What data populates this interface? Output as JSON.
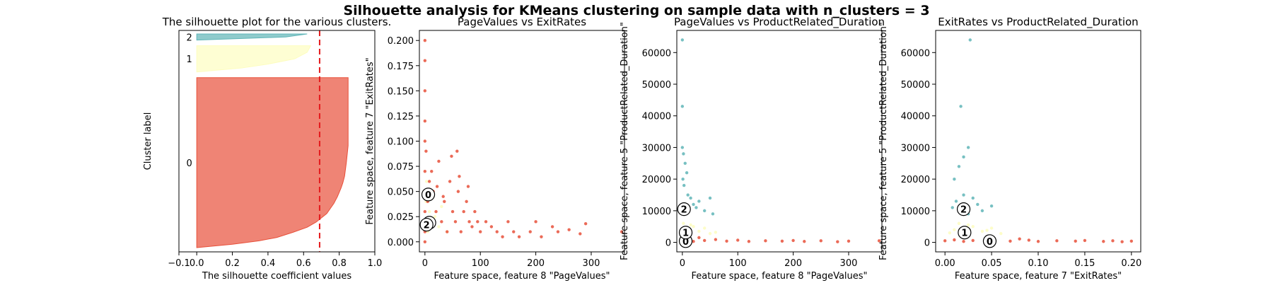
{
  "suptitle": "Silhouette analysis for KMeans clustering on sample data with n_clusters = 3",
  "colors": {
    "cluster_0": "#e8503a",
    "cluster_1": "#fdfdc0",
    "cluster_2": "#5fb5b7",
    "mean_line": "#e41a1c"
  },
  "chart_data": [
    {
      "type": "silhouette",
      "title": "The silhouette plot for the various clusters.",
      "xlabel": "The silhouette coefficient values",
      "ylabel": "Cluster label",
      "xlim": [
        -0.1,
        1.0
      ],
      "xticks": [
        "−0.1",
        "0.0",
        "0.2",
        "0.4",
        "0.6",
        "0.8",
        "1.0"
      ],
      "average_silhouette": 0.69,
      "clusters": [
        {
          "label": "0",
          "share": 0.84,
          "max_value": 0.85,
          "profile": [
            [
              0.0,
              0.85
            ],
            [
              0.1,
              0.85
            ],
            [
              0.2,
              0.85
            ],
            [
              0.3,
              0.85
            ],
            [
              0.4,
              0.85
            ],
            [
              0.5,
              0.84
            ],
            [
              0.58,
              0.83
            ],
            [
              0.62,
              0.82
            ],
            [
              0.65,
              0.81
            ],
            [
              0.7,
              0.79
            ],
            [
              0.74,
              0.77
            ],
            [
              0.8,
              0.73
            ],
            [
              0.85,
              0.67
            ],
            [
              0.88,
              0.62
            ],
            [
              0.91,
              0.54
            ],
            [
              0.94,
              0.45
            ],
            [
              0.96,
              0.35
            ],
            [
              0.98,
              0.2
            ],
            [
              1.0,
              0.0
            ]
          ]
        },
        {
          "label": "1",
          "share": 0.13,
          "max_value": 0.64,
          "profile": [
            [
              0.0,
              0.64
            ],
            [
              0.25,
              0.62
            ],
            [
              0.5,
              0.55
            ],
            [
              0.7,
              0.4
            ],
            [
              0.85,
              0.25
            ],
            [
              1.0,
              0.0
            ]
          ]
        },
        {
          "label": "2",
          "share": 0.03,
          "max_value": 0.62,
          "profile": [
            [
              0.0,
              0.62
            ],
            [
              0.5,
              0.5
            ],
            [
              1.0,
              0.0
            ]
          ]
        }
      ]
    },
    {
      "type": "scatter",
      "title": "PageValues vs ExitRates",
      "xlabel": "Feature space, feature 8 \"PageValues\"",
      "ylabel": "Feature space, feature 7 \"ExitRates\"",
      "xlim": [
        -10,
        360
      ],
      "ylim": [
        -0.01,
        0.21
      ],
      "xticks": [
        0,
        100,
        200,
        300
      ],
      "yticks": [
        "0.000",
        "0.025",
        "0.050",
        "0.075",
        "0.100",
        "0.125",
        "0.150",
        "0.175",
        "0.200"
      ],
      "ytick_values": [
        0,
        0.025,
        0.05,
        0.075,
        0.1,
        0.125,
        0.15,
        0.175,
        0.2
      ],
      "series": [
        {
          "cluster": "1",
          "points": [
            [
              0,
              0.02
            ],
            [
              2,
              0.04
            ],
            [
              5,
              0.01
            ],
            [
              8,
              0.03
            ],
            [
              12,
              0.02
            ],
            [
              18,
              0.025
            ],
            [
              25,
              0.015
            ],
            [
              30,
              0.035
            ],
            [
              40,
              0.01
            ],
            [
              3,
              0.06
            ]
          ]
        },
        {
          "cluster": "0",
          "points": [
            [
              0,
              0.0
            ],
            [
              0,
              0.01
            ],
            [
              0,
              0.02
            ],
            [
              0,
              0.03
            ],
            [
              0,
              0.05
            ],
            [
              0,
              0.07
            ],
            [
              0,
              0.1
            ],
            [
              0,
              0.12
            ],
            [
              0,
              0.15
            ],
            [
              0,
              0.2
            ],
            [
              0,
              0.18
            ],
            [
              2,
              0.09
            ],
            [
              5,
              0.04
            ],
            [
              8,
              0.06
            ],
            [
              10,
              0.02
            ],
            [
              15,
              0.05
            ],
            [
              20,
              0.03
            ],
            [
              25,
              0.08
            ],
            [
              30,
              0.02
            ],
            [
              35,
              0.04
            ],
            [
              40,
              0.01
            ],
            [
              45,
              0.06
            ],
            [
              50,
              0.03
            ],
            [
              55,
              0.02
            ],
            [
              60,
              0.05
            ],
            [
              65,
              0.01
            ],
            [
              70,
              0.03
            ],
            [
              75,
              0.04
            ],
            [
              80,
              0.02
            ],
            [
              85,
              0.015
            ],
            [
              90,
              0.03
            ],
            [
              95,
              0.02
            ],
            [
              100,
              0.01
            ],
            [
              110,
              0.02
            ],
            [
              120,
              0.015
            ],
            [
              130,
              0.01
            ],
            [
              140,
              0.005
            ],
            [
              150,
              0.02
            ],
            [
              160,
              0.01
            ],
            [
              170,
              0.005
            ],
            [
              190,
              0.01
            ],
            [
              200,
              0.02
            ],
            [
              210,
              0.005
            ],
            [
              230,
              0.015
            ],
            [
              240,
              0.01
            ],
            [
              260,
              0.012
            ],
            [
              280,
              0.008
            ],
            [
              290,
              0.018
            ],
            [
              355,
              0.01
            ],
            [
              12,
              0.07
            ],
            [
              22,
              0.055
            ],
            [
              33,
              0.045
            ],
            [
              48,
              0.085
            ],
            [
              62,
              0.065
            ],
            [
              78,
              0.055
            ],
            [
              58,
              0.09
            ]
          ]
        }
      ],
      "centers": [
        {
          "label": "0",
          "x": 6,
          "y": 0.047
        },
        {
          "label": "1",
          "x": 8,
          "y": 0.019
        },
        {
          "label": "2",
          "x": 3,
          "y": 0.017
        }
      ]
    },
    {
      "type": "scatter",
      "title": "PageValues vs ProductRelated_Duration",
      "xlabel": "Feature space, feature 8 \"PageValues\"",
      "ylabel": "Feature space, feature 5 \"ProductRelated_Duration\"",
      "xlim": [
        -10,
        360
      ],
      "ylim": [
        -3000,
        67000
      ],
      "xticks": [
        0,
        100,
        200,
        300
      ],
      "yticks": [
        "0",
        "10000",
        "20000",
        "30000",
        "40000",
        "50000",
        "60000"
      ],
      "ytick_values": [
        0,
        10000,
        20000,
        30000,
        40000,
        50000,
        60000
      ],
      "series": [
        {
          "cluster": "1",
          "points": [
            [
              0,
              3000
            ],
            [
              5,
              4000
            ],
            [
              10,
              2500
            ],
            [
              20,
              5000
            ],
            [
              30,
              3500
            ],
            [
              40,
              4500
            ],
            [
              50,
              2800
            ],
            [
              60,
              3200
            ],
            [
              2,
              6000
            ],
            [
              15,
              5500
            ]
          ]
        },
        {
          "cluster": "0",
          "points": [
            [
              0,
              500
            ],
            [
              10,
              800
            ],
            [
              20,
              300
            ],
            [
              40,
              600
            ],
            [
              60,
              900
            ],
            [
              80,
              400
            ],
            [
              100,
              700
            ],
            [
              120,
              300
            ],
            [
              150,
              500
            ],
            [
              180,
              400
            ],
            [
              200,
              600
            ],
            [
              220,
              300
            ],
            [
              250,
              500
            ],
            [
              280,
              200
            ],
            [
              300,
              400
            ],
            [
              355,
              500
            ],
            [
              5,
              1200
            ],
            [
              30,
              1500
            ]
          ]
        },
        {
          "cluster": "2",
          "points": [
            [
              0,
              64000
            ],
            [
              0,
              43000
            ],
            [
              0,
              30000
            ],
            [
              2,
              28000
            ],
            [
              5,
              25000
            ],
            [
              8,
              22000
            ],
            [
              3,
              18000
            ],
            [
              10,
              15000
            ],
            [
              15,
              14000
            ],
            [
              20,
              12000
            ],
            [
              25,
              11000
            ],
            [
              30,
              13000
            ],
            [
              40,
              10000
            ],
            [
              50,
              14000
            ],
            [
              55,
              9000
            ],
            [
              1,
              20000
            ]
          ]
        }
      ],
      "centers": [
        {
          "label": "0",
          "x": 6,
          "y": 400
        },
        {
          "label": "1",
          "x": 6,
          "y": 3100
        },
        {
          "label": "2",
          "x": 3,
          "y": 10500
        }
      ]
    },
    {
      "type": "scatter",
      "title": "ExitRates vs ProductRelated_Duration",
      "xlabel": "Feature space, feature 7 \"ExitRates\"",
      "ylabel": "Feature space, feature 5 \"ProductRelated_Duration\"",
      "xlim": [
        -0.01,
        0.21
      ],
      "ylim": [
        -3000,
        67000
      ],
      "xticks": [
        "0.00",
        "0.05",
        "0.10",
        "0.15",
        "0.20"
      ],
      "xtick_values": [
        0,
        0.05,
        0.1,
        0.15,
        0.2
      ],
      "yticks": [
        "0",
        "10000",
        "20000",
        "30000",
        "40000",
        "50000",
        "60000"
      ],
      "ytick_values": [
        0,
        10000,
        20000,
        30000,
        40000,
        50000,
        60000
      ],
      "series": [
        {
          "cluster": "1",
          "points": [
            [
              0.005,
              3000
            ],
            [
              0.01,
              4000
            ],
            [
              0.02,
              2500
            ],
            [
              0.03,
              5000
            ],
            [
              0.04,
              3500
            ],
            [
              0.05,
              4500
            ],
            [
              0.06,
              2800
            ],
            [
              0.015,
              6000
            ],
            [
              0.025,
              5500
            ],
            [
              0.045,
              3800
            ]
          ]
        },
        {
          "cluster": "0",
          "points": [
            [
              0.0,
              500
            ],
            [
              0.01,
              800
            ],
            [
              0.02,
              300
            ],
            [
              0.03,
              600
            ],
            [
              0.05,
              900
            ],
            [
              0.07,
              400
            ],
            [
              0.09,
              700
            ],
            [
              0.1,
              300
            ],
            [
              0.12,
              500
            ],
            [
              0.14,
              400
            ],
            [
              0.15,
              600
            ],
            [
              0.17,
              300
            ],
            [
              0.18,
              500
            ],
            [
              0.19,
              200
            ],
            [
              0.2,
              400
            ],
            [
              0.08,
              1100
            ]
          ]
        },
        {
          "cluster": "2",
          "points": [
            [
              0.027,
              64000
            ],
            [
              0.017,
              43000
            ],
            [
              0.025,
              30000
            ],
            [
              0.02,
              27000
            ],
            [
              0.015,
              24000
            ],
            [
              0.01,
              20000
            ],
            [
              0.02,
              15000
            ],
            [
              0.03,
              14000
            ],
            [
              0.012,
              13000
            ],
            [
              0.035,
              12000
            ],
            [
              0.04,
              10000
            ],
            [
              0.008,
              11000
            ],
            [
              0.025,
              9000
            ],
            [
              0.05,
              11500
            ]
          ]
        }
      ],
      "centers": [
        {
          "label": "0",
          "x": 0.048,
          "y": 400
        },
        {
          "label": "1",
          "x": 0.021,
          "y": 3100
        },
        {
          "label": "2",
          "x": 0.02,
          "y": 10500
        }
      ]
    }
  ]
}
